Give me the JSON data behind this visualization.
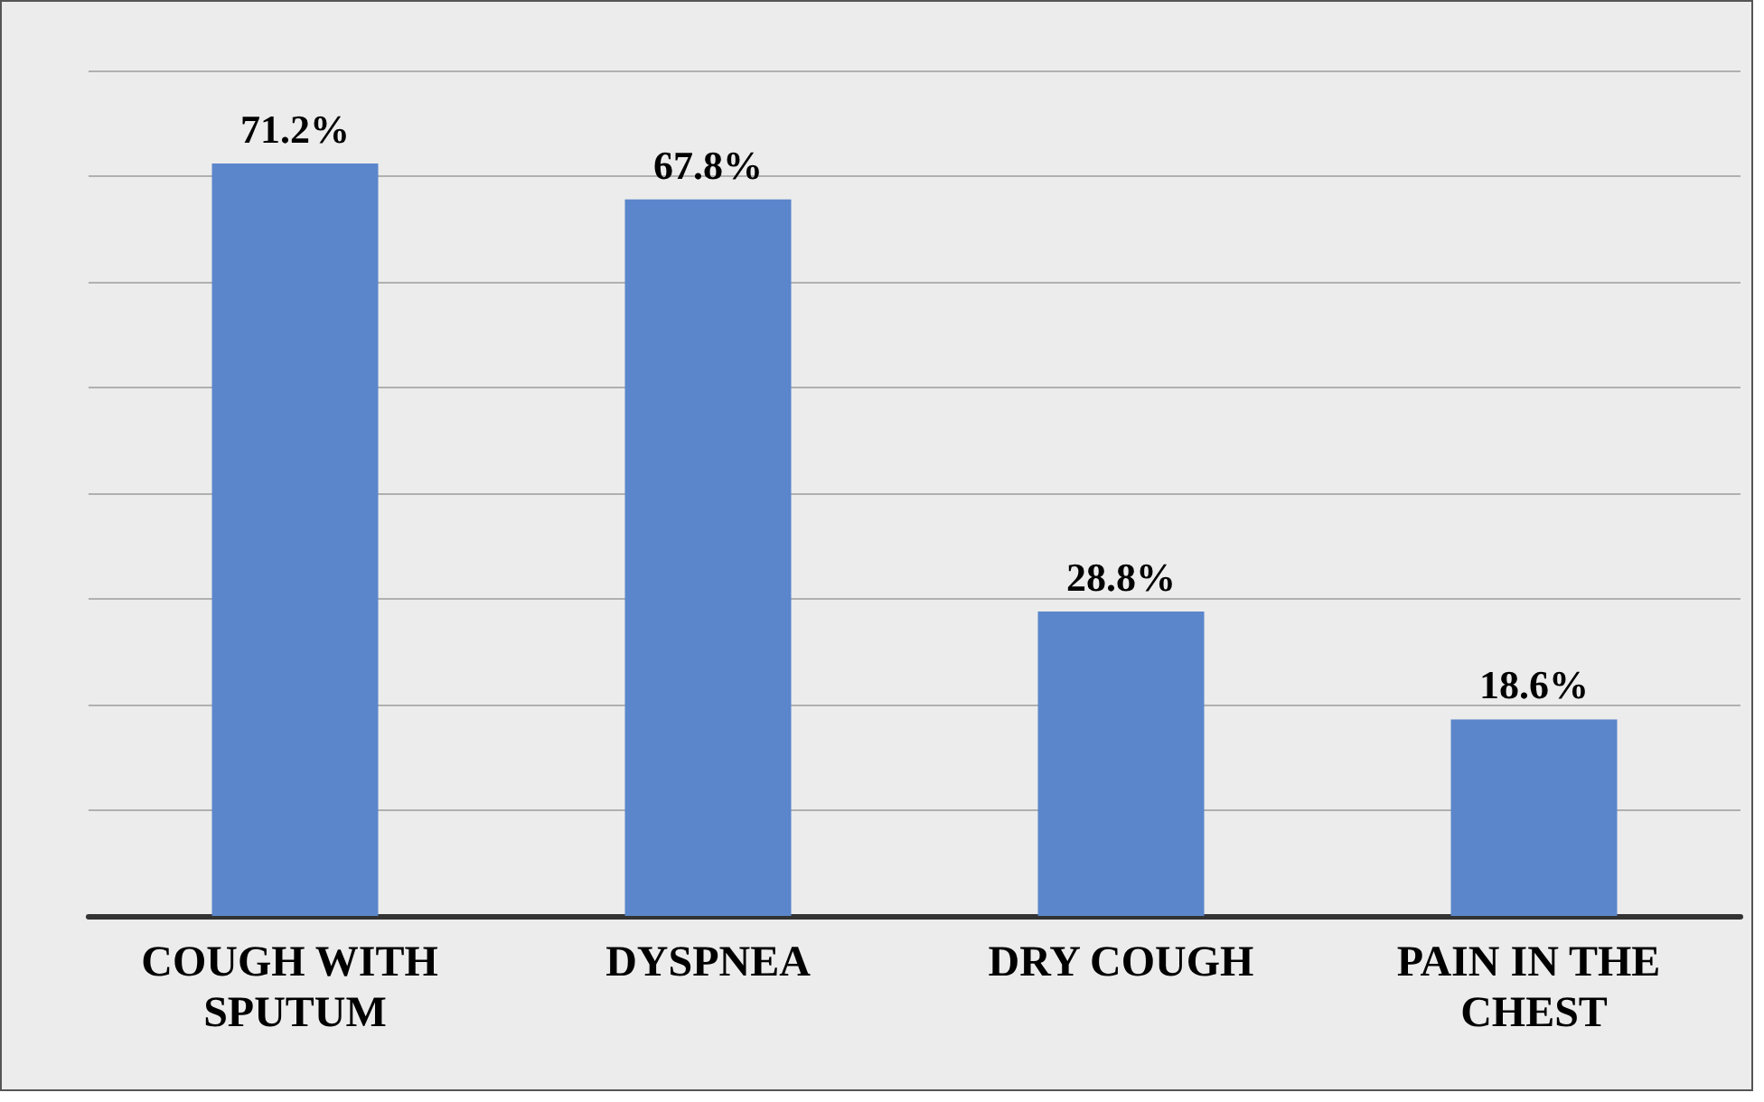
{
  "chart_data": {
    "type": "bar",
    "categories": [
      "COUGH WITH SPUTUM",
      "DYSPNEA",
      "DRY COUGH",
      "PAIN IN THE CHEST"
    ],
    "values": [
      71.2,
      67.8,
      28.8,
      18.6
    ],
    "value_labels": [
      "71.2%",
      "67.8%",
      "28.8%",
      "18.6%"
    ],
    "color": "#5b86cb",
    "ylim": [
      0,
      80
    ],
    "yticks": [
      {
        "value": 0,
        "label": null
      },
      {
        "value": 10,
        "label": null
      },
      {
        "value": 20,
        "label": null
      },
      {
        "value": 30,
        "label": null
      },
      {
        "value": 40,
        "label": null
      },
      {
        "value": 50,
        "label": null
      },
      {
        "value": 60,
        "label": null
      },
      {
        "value": 70,
        "label": null
      },
      {
        "value": 80,
        "label": null
      }
    ],
    "grid": "y",
    "tick_labels": "x"
  }
}
